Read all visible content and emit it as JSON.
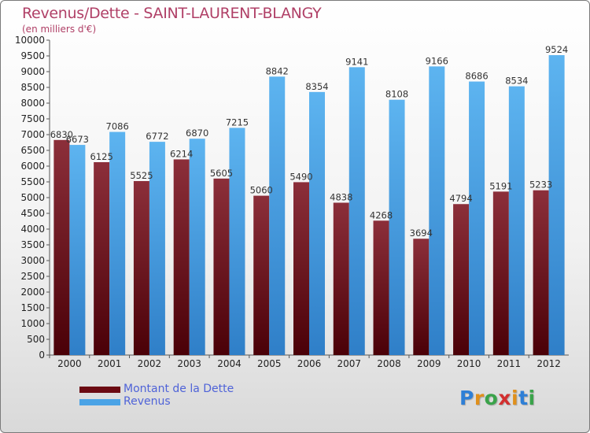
{
  "chart_data": {
    "type": "bar",
    "title": "Revenus/Dette - SAINT-LAURENT-BLANGY",
    "subtitle": "(en milliers d'€)",
    "xlabel": "",
    "ylabel": "",
    "ylim": [
      0,
      10000
    ],
    "ytick_step": 500,
    "categories": [
      "2000",
      "2001",
      "2002",
      "2003",
      "2004",
      "2005",
      "2006",
      "2007",
      "2008",
      "2009",
      "2010",
      "2011",
      "2012"
    ],
    "series": [
      {
        "name": "Montant de la Dette",
        "color": "#6b0a12",
        "values": [
          6830,
          6125,
          5525,
          6214,
          5605,
          5060,
          5490,
          4838,
          4268,
          3694,
          4794,
          5191,
          5233
        ],
        "labels": [
          "6830",
          "6125",
          "5525",
          "6214",
          "5605",
          "5060",
          "5490",
          "4838",
          "4268",
          "3694",
          "4794",
          "5191",
          "5233"
        ]
      },
      {
        "name": "Revenus",
        "color": "#4aa3e6",
        "values": [
          6673,
          7086,
          6772,
          6870,
          7215,
          8842,
          8354,
          9141,
          8108,
          9166,
          8686,
          8534,
          9524
        ],
        "labels": [
          "6673",
          "7086",
          "6772",
          "6870",
          "7215",
          "8842",
          "8354",
          "9141",
          "8108",
          "9166",
          "8686",
          "8534",
          "9524"
        ]
      }
    ],
    "legend_position": "bottom-left",
    "grid": false
  },
  "branding": {
    "letters": [
      "P",
      "r",
      "o",
      "x",
      "i",
      "t",
      "i"
    ],
    "colors": [
      "#2e7fd6",
      "#e0901c",
      "#3aa34a",
      "#d22f2f",
      "#e0901c",
      "#2e7fd6",
      "#3aa34a"
    ]
  }
}
